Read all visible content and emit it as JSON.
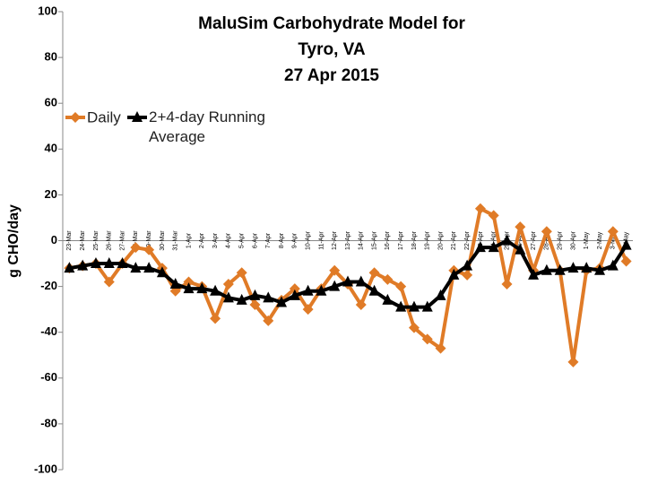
{
  "chart_data": {
    "type": "line",
    "title": [
      "MaluSim Carbohydrate Model for",
      "Tyro, VA",
      "27 Apr 2015"
    ],
    "y_label": "g CHO/day",
    "categories": [
      "23-Mar",
      "24-Mar",
      "25-Mar",
      "26-Mar",
      "27-Mar",
      "28-Mar",
      "29-Mar",
      "30-Mar",
      "31-Mar",
      "1-Apr",
      "2-Apr",
      "3-Apr",
      "4-Apr",
      "5-Apr",
      "6-Apr",
      "7-Apr",
      "8-Apr",
      "9-Apr",
      "10-Apr",
      "11-Apr",
      "12-Apr",
      "13-Apr",
      "14-Apr",
      "15-Apr",
      "16-Apr",
      "17-Apr",
      "18-Apr",
      "19-Apr",
      "20-Apr",
      "21-Apr",
      "22-Apr",
      "23-Apr",
      "24-Apr",
      "25-Apr",
      "26-Apr",
      "27-Apr",
      "28-Apr",
      "29-Apr",
      "30-Apr",
      "1-May",
      "2-May",
      "3-May",
      "4-May"
    ],
    "series": [
      {
        "name": "Daily",
        "color": "#e07b27",
        "marker": "diamond",
        "values": [
          -12,
          -11,
          -10,
          -18,
          -10,
          -3,
          -4,
          -12,
          -22,
          -18,
          -20,
          -34,
          -19,
          -14,
          -28,
          -35,
          -26,
          -21,
          -30,
          -21,
          -13,
          -19,
          -28,
          -14,
          -17,
          -20,
          -38,
          -43,
          -47,
          -13,
          -15,
          14,
          11,
          -19,
          6,
          -13,
          4,
          -13,
          -53,
          -13,
          -12,
          4,
          -9
        ]
      },
      {
        "name": "2+4-day Running Average",
        "color": "#000000",
        "marker": "triangle",
        "values": [
          -12,
          -11,
          -10,
          -10,
          -10,
          -12,
          -12,
          -14,
          -19,
          -21,
          -21,
          -22,
          -25,
          -26,
          -24,
          -25,
          -27,
          -24,
          -22,
          -22,
          -20,
          -18,
          -18,
          -22,
          -26,
          -29,
          -29,
          -29,
          -24,
          -15,
          -11,
          -3,
          -3,
          0,
          -4,
          -15,
          -13,
          -13,
          -12,
          -12,
          -13,
          -11,
          -2
        ]
      }
    ],
    "ylim": [
      -100,
      100
    ],
    "yticks": [
      -100,
      -80,
      -60,
      -40,
      -20,
      0,
      20,
      40,
      60,
      80,
      100
    ],
    "legend": "upper-left"
  }
}
